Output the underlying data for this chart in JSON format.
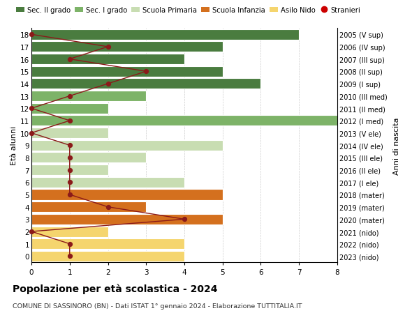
{
  "ages": [
    18,
    17,
    16,
    15,
    14,
    13,
    12,
    11,
    10,
    9,
    8,
    7,
    6,
    5,
    4,
    3,
    2,
    1,
    0
  ],
  "birth_years": [
    "2005 (V sup)",
    "2006 (IV sup)",
    "2007 (III sup)",
    "2008 (II sup)",
    "2009 (I sup)",
    "2010 (III med)",
    "2011 (II med)",
    "2012 (I med)",
    "2013 (V ele)",
    "2014 (IV ele)",
    "2015 (III ele)",
    "2016 (II ele)",
    "2017 (I ele)",
    "2018 (mater)",
    "2019 (mater)",
    "2020 (mater)",
    "2021 (nido)",
    "2022 (nido)",
    "2023 (nido)"
  ],
  "bar_values": [
    7,
    5,
    4,
    5,
    6,
    3,
    2,
    8,
    2,
    5,
    3,
    2,
    4,
    5,
    3,
    5,
    2,
    4,
    4
  ],
  "bar_colors": [
    "#4a7c3f",
    "#4a7c3f",
    "#4a7c3f",
    "#4a7c3f",
    "#4a7c3f",
    "#7db368",
    "#7db368",
    "#7db368",
    "#c8ddb2",
    "#c8ddb2",
    "#c8ddb2",
    "#c8ddb2",
    "#c8ddb2",
    "#d4701e",
    "#d4701e",
    "#d4701e",
    "#f5d56e",
    "#f5d56e",
    "#f5d56e"
  ],
  "stranieri_values": [
    0,
    2,
    1,
    3,
    2,
    1,
    0,
    1,
    0,
    1,
    1,
    1,
    1,
    1,
    2,
    4,
    0,
    1,
    1
  ],
  "stranieri_color": "#8b1a1a",
  "legend_labels": [
    "Sec. II grado",
    "Sec. I grado",
    "Scuola Primaria",
    "Scuola Infanzia",
    "Asilo Nido",
    "Stranieri"
  ],
  "legend_colors": [
    "#4a7c3f",
    "#7db368",
    "#c8ddb2",
    "#d4701e",
    "#f5d56e",
    "#cc0000"
  ],
  "title": "Popolazione per età scolastica - 2024",
  "subtitle": "COMUNE DI SASSINORO (BN) - Dati ISTAT 1° gennaio 2024 - Elaborazione TUTTITALIA.IT",
  "ylabel_left": "Età alunni",
  "ylabel_right": "Anni di nascita",
  "xlim": [
    0,
    8
  ],
  "background_color": "#ffffff",
  "grid_color": "#cccccc"
}
